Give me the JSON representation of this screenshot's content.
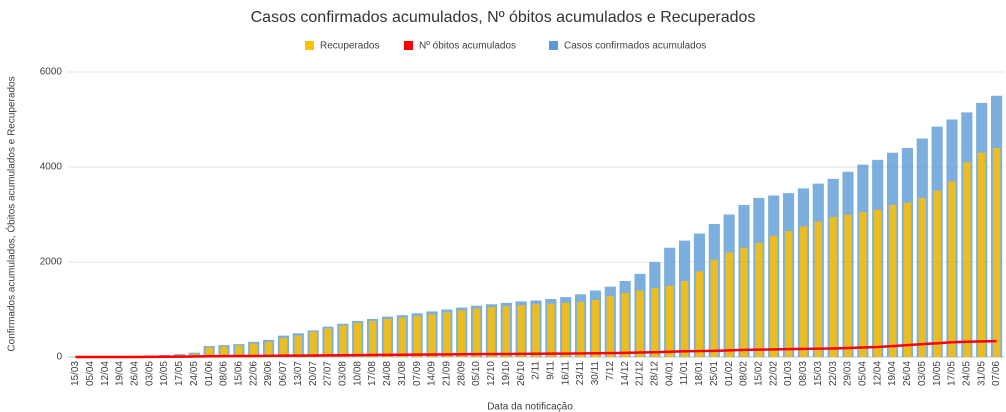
{
  "chart_data": {
    "type": "bar",
    "title": "Casos confirmados acumulados, Nº óbitos acumulados e Recuperados",
    "x_label": "Data da notificação",
    "y_label": "Confirmados acumulados, Óbitos acumulados e Recuperados",
    "categories": [
      "15/03",
      "05/04",
      "12/04",
      "19/04",
      "26/04",
      "03/05",
      "10/05",
      "17/05",
      "24/05",
      "01/06",
      "08/06",
      "15/06",
      "22/06",
      "29/06",
      "06/07",
      "13/07",
      "20/07",
      "27/07",
      "03/08",
      "10/08",
      "17/08",
      "24/08",
      "31/08",
      "07/09",
      "14/09",
      "21/09",
      "28/09",
      "05/10",
      "12/10",
      "19/10",
      "26/10",
      "2/11",
      "9/11",
      "16/11",
      "23/11",
      "30/11",
      "7/12",
      "14/12",
      "21/12",
      "28/12",
      "04/01",
      "11/01",
      "18/01",
      "25/01",
      "01/02",
      "08/02",
      "15/02",
      "22/02",
      "01/03",
      "08/03",
      "15/03",
      "22/03",
      "29/03",
      "05/04",
      "12/04",
      "19/04",
      "26/04",
      "03/05",
      "10/05",
      "17/05",
      "24/05",
      "31/05",
      "07/06"
    ],
    "series": [
      {
        "name": "Recuperados",
        "color": "#ffc000",
        "type": "bar",
        "values": [
          0,
          0,
          2,
          5,
          10,
          15,
          25,
          40,
          60,
          200,
          220,
          240,
          280,
          320,
          400,
          450,
          530,
          600,
          660,
          720,
          760,
          800,
          830,
          860,
          900,
          940,
          980,
          1020,
          1050,
          1070,
          1090,
          1110,
          1120,
          1140,
          1160,
          1200,
          1280,
          1350,
          1400,
          1450,
          1500,
          1600,
          1800,
          2050,
          2200,
          2300,
          2400,
          2550,
          2650,
          2750,
          2850,
          2950,
          3000,
          3050,
          3100,
          3200,
          3250,
          3350,
          3500,
          3700,
          4100,
          4300,
          4400
        ]
      },
      {
        "name": "Nº óbitos acumulados",
        "color": "#ff0000",
        "type": "line",
        "values": [
          0,
          0,
          0,
          0,
          1,
          2,
          5,
          8,
          10,
          15,
          18,
          20,
          22,
          25,
          28,
          30,
          32,
          35,
          38,
          40,
          42,
          45,
          48,
          50,
          52,
          55,
          58,
          60,
          62,
          64,
          66,
          68,
          70,
          72,
          75,
          78,
          82,
          88,
          95,
          100,
          110,
          120,
          125,
          130,
          140,
          150,
          155,
          160,
          165,
          170,
          175,
          180,
          190,
          200,
          210,
          230,
          250,
          270,
          290,
          310,
          320,
          330,
          335
        ]
      },
      {
        "name": "Casos confirmados acumulados",
        "color": "#5b9bd5",
        "type": "bar",
        "values": [
          0,
          5,
          10,
          15,
          20,
          30,
          40,
          60,
          90,
          230,
          250,
          270,
          320,
          360,
          450,
          500,
          560,
          640,
          700,
          760,
          800,
          850,
          880,
          920,
          960,
          1000,
          1040,
          1080,
          1110,
          1140,
          1170,
          1190,
          1220,
          1260,
          1320,
          1400,
          1480,
          1600,
          1750,
          2000,
          2300,
          2450,
          2600,
          2800,
          3000,
          3200,
          3350,
          3400,
          3450,
          3550,
          3650,
          3750,
          3900,
          4050,
          4150,
          4300,
          4400,
          4600,
          4850,
          5000,
          5150,
          5350,
          5500
        ]
      }
    ],
    "ylim": [
      0,
      6000
    ],
    "yticks": [
      0,
      2000,
      4000,
      6000
    ],
    "grid": true,
    "legend": "top"
  }
}
